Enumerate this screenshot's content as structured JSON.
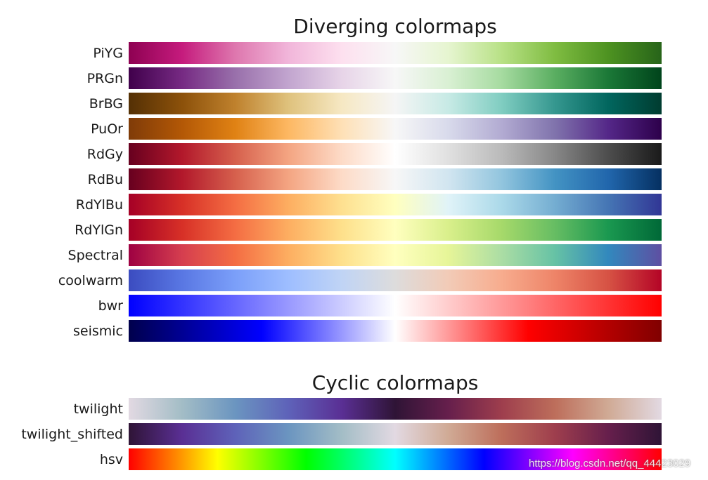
{
  "chart_data": [
    {
      "type": "heatmap",
      "title": "Diverging colormaps",
      "series": [
        {
          "name": "PiYG",
          "colors": [
            "#8e0152",
            "#c51b7d",
            "#de77ae",
            "#f1b6da",
            "#fde0ef",
            "#f7f7f7",
            "#e6f5d0",
            "#b8e186",
            "#7fbc41",
            "#4d9221",
            "#276419"
          ]
        },
        {
          "name": "PRGn",
          "colors": [
            "#40004b",
            "#762a83",
            "#9970ab",
            "#c2a5cf",
            "#e7d4e8",
            "#f7f7f7",
            "#d9f0d3",
            "#a6dba0",
            "#5aae61",
            "#1b7837",
            "#00441b"
          ]
        },
        {
          "name": "BrBG",
          "colors": [
            "#543005",
            "#8c510a",
            "#bf812d",
            "#dfc27d",
            "#f6e8c3",
            "#f5f5f5",
            "#c7eae5",
            "#80cdc1",
            "#35978f",
            "#01665e",
            "#003c30"
          ]
        },
        {
          "name": "PuOr",
          "colors": [
            "#7f3b08",
            "#b35806",
            "#e08214",
            "#fdb863",
            "#fee0b6",
            "#f7f7f7",
            "#d8daeb",
            "#b2abd2",
            "#8073ac",
            "#542788",
            "#2d004b"
          ]
        },
        {
          "name": "RdGy",
          "colors": [
            "#67001f",
            "#b2182b",
            "#d6604d",
            "#f4a582",
            "#fddbc7",
            "#ffffff",
            "#e0e0e0",
            "#bababa",
            "#878787",
            "#4d4d4d",
            "#1a1a1a"
          ]
        },
        {
          "name": "RdBu",
          "colors": [
            "#67001f",
            "#b2182b",
            "#d6604d",
            "#f4a582",
            "#fddbc7",
            "#f7f7f7",
            "#d1e5f0",
            "#92c5de",
            "#4393c3",
            "#2166ac",
            "#053061"
          ]
        },
        {
          "name": "RdYlBu",
          "colors": [
            "#a50026",
            "#d73027",
            "#f46d43",
            "#fdae61",
            "#fee090",
            "#ffffbf",
            "#e0f3f8",
            "#abd9e9",
            "#74add1",
            "#4575b4",
            "#313695"
          ]
        },
        {
          "name": "RdYlGn",
          "colors": [
            "#a50026",
            "#d73027",
            "#f46d43",
            "#fdae61",
            "#fee08b",
            "#ffffbf",
            "#d9ef8b",
            "#a6d96a",
            "#66bd63",
            "#1a9850",
            "#006837"
          ]
        },
        {
          "name": "Spectral",
          "colors": [
            "#9e0142",
            "#d53e4f",
            "#f46d43",
            "#fdae61",
            "#fee08b",
            "#ffffbf",
            "#e6f598",
            "#abdda4",
            "#66c2a5",
            "#3288bd",
            "#5e4fa2"
          ]
        },
        {
          "name": "coolwarm",
          "colors": [
            "#3b4cc0",
            "#5977e3",
            "#7b9ff9",
            "#9ebeff",
            "#c0d4f5",
            "#dddcdc",
            "#f2cbb7",
            "#f7ac8e",
            "#ee8468",
            "#d65244",
            "#b40426"
          ]
        },
        {
          "name": "bwr",
          "colors": [
            "#0000ff",
            "#ffffff",
            "#ff0000"
          ]
        },
        {
          "name": "seismic",
          "colors": [
            "#00004c",
            "#0000ff",
            "#ffffff",
            "#ff0000",
            "#800000"
          ]
        }
      ]
    },
    {
      "type": "heatmap",
      "title": "Cyclic colormaps",
      "series": [
        {
          "name": "twilight",
          "colors": [
            "#e2d9e2",
            "#a3bdc6",
            "#6b95c0",
            "#5e62b9",
            "#5a2f94",
            "#2f1436",
            "#661f4c",
            "#9e3e4d",
            "#bd6e5b",
            "#d0aa95",
            "#e2d9e2"
          ]
        },
        {
          "name": "twilight_shifted",
          "colors": [
            "#2f1436",
            "#5a2f94",
            "#5e62b9",
            "#6b95c0",
            "#a3bdc6",
            "#e2d9e2",
            "#d0aa95",
            "#bd6e5b",
            "#9e3e4d",
            "#661f4c",
            "#2f1436"
          ]
        },
        {
          "name": "hsv",
          "colors": [
            "#ff0000",
            "#ffff00",
            "#00ff00",
            "#00ffff",
            "#0000ff",
            "#ff00ff",
            "#ff0000"
          ]
        }
      ]
    }
  ],
  "watermark": "https://blog.csdn.net/qq_44423029"
}
